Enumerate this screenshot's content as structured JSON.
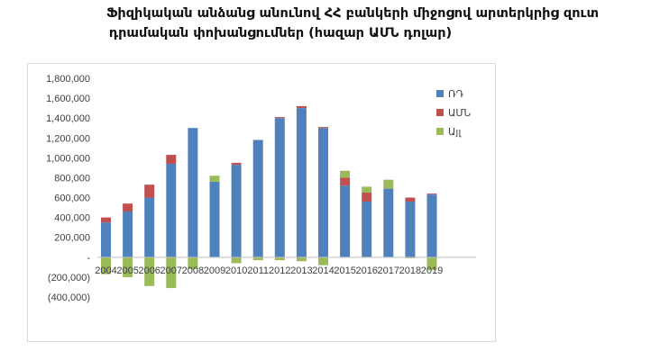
{
  "title_line1": "Ֆիզիկական անձանց անունով ՀՀ բանկերի միջոցով արտերկրից զուտ",
  "title_line2": "դրամական փոխանցումներ (հազար ԱՄՆ դոլար)",
  "chart_data": {
    "type": "bar",
    "stacked": true,
    "title": "Ֆիզիկական անձանց անունով ՀՀ բանկերի միջոցով արտերկրից զուտ դրամական փոխանցումներ (հազար ԱՄՆ դոլար)",
    "categories": [
      "2004",
      "2005",
      "2006",
      "2007",
      "2008",
      "2009",
      "2010",
      "2011",
      "2012",
      "2013",
      "2014",
      "2015",
      "2016",
      "2017",
      "2018",
      "2019"
    ],
    "series": [
      {
        "name": "ՌԴ",
        "color": "#4f81bd",
        "values": [
          350000,
          460000,
          600000,
          940000,
          1300000,
          760000,
          930000,
          1180000,
          1400000,
          1500000,
          1300000,
          720000,
          560000,
          690000,
          560000,
          630000
        ]
      },
      {
        "name": "ԱՄՆ",
        "color": "#c0504d",
        "values": [
          50000,
          80000,
          130000,
          90000,
          0,
          0,
          20000,
          0,
          10000,
          20000,
          10000,
          80000,
          90000,
          0,
          40000,
          10000
        ]
      },
      {
        "name": "Այլ",
        "color": "#9bbb59",
        "values": [
          -170000,
          -200000,
          -290000,
          -310000,
          -120000,
          60000,
          -60000,
          -30000,
          -30000,
          -40000,
          -80000,
          70000,
          60000,
          90000,
          -10000,
          -130000
        ]
      }
    ],
    "ylim": [
      -400000,
      1800000
    ],
    "yticks": [
      -400000,
      -200000,
      0,
      200000,
      400000,
      600000,
      800000,
      1000000,
      1200000,
      1400000,
      1600000,
      1800000
    ],
    "ytick_labels": [
      "(400,000)",
      "(200,000)",
      "-",
      "200,000",
      "400,000",
      "600,000",
      "800,000",
      "1,000,000",
      "1,200,000",
      "1,400,000",
      "1,600,000",
      "1,800,000"
    ],
    "grid": false,
    "legend": "right",
    "xlabel": "",
    "ylabel": ""
  }
}
